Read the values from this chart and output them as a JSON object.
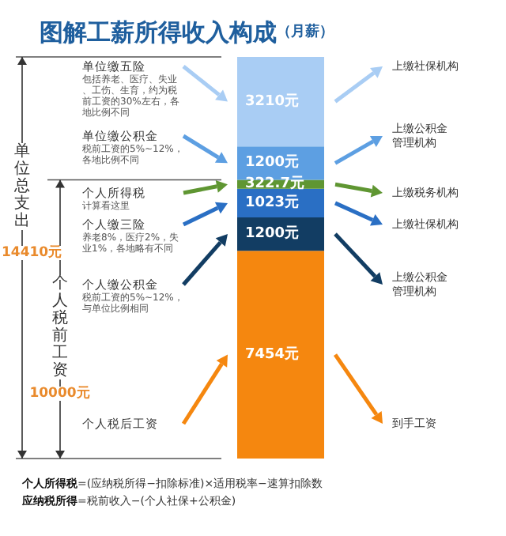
{
  "chart_data": {
    "type": "bar",
    "title": "图解工薪所得收入构成",
    "subtitle": "（月薪）",
    "stacked": true,
    "categories": [
      null
    ],
    "ylim": [
      0,
      14410
    ],
    "tick_labels": false,
    "series": [
      {
        "color": "#f5870f",
        "values": [
          7454
        ],
        "value_labels": [
          "7454元"
        ]
      },
      {
        "color": "#123d63",
        "values": [
          1200
        ],
        "value_labels": [
          "1200元"
        ]
      },
      {
        "color": "#2a6fc4",
        "values": [
          1023
        ],
        "value_labels": [
          "1023元"
        ]
      },
      {
        "color": "#5f9632",
        "values": [
          322.7
        ],
        "value_labels": [
          "322.7元"
        ]
      },
      {
        "color": "#5d9fe2",
        "values": [
          1200
        ],
        "value_labels": [
          "1200元"
        ]
      },
      {
        "color": "#a9cdf4",
        "values": [
          3210
        ],
        "value_labels": [
          "3210元"
        ]
      }
    ],
    "annotations": [
      "单位缴五险",
      "单位缴公积金",
      "个人所得税",
      "个人缴三险",
      "个人缴公积金",
      "个人税后工资",
      "上缴社保机构",
      "上缴公积金管理机构",
      "上缴税务机构",
      "上缴社保机构",
      "上缴公积金管理机构",
      "到手工资",
      "包括养老、医疗、失业、工伤、生育，约为税前工资的30%左右，各地比例不同",
      "税前工资的5%~12%，各地比例不同",
      "计算看这里",
      "养老8%，医疗2%，失业1%，各地略有不同",
      "税前工资的5%~12%，与单位比例相同",
      "单位总支出",
      "14410元",
      "个人税前工资",
      "10000元",
      "个人所得税=(应纳税所得−扣除标准)×适用税率−速算扣除数",
      "应纳税所得=税前收入−(个人社保+公积金)"
    ]
  }
}
